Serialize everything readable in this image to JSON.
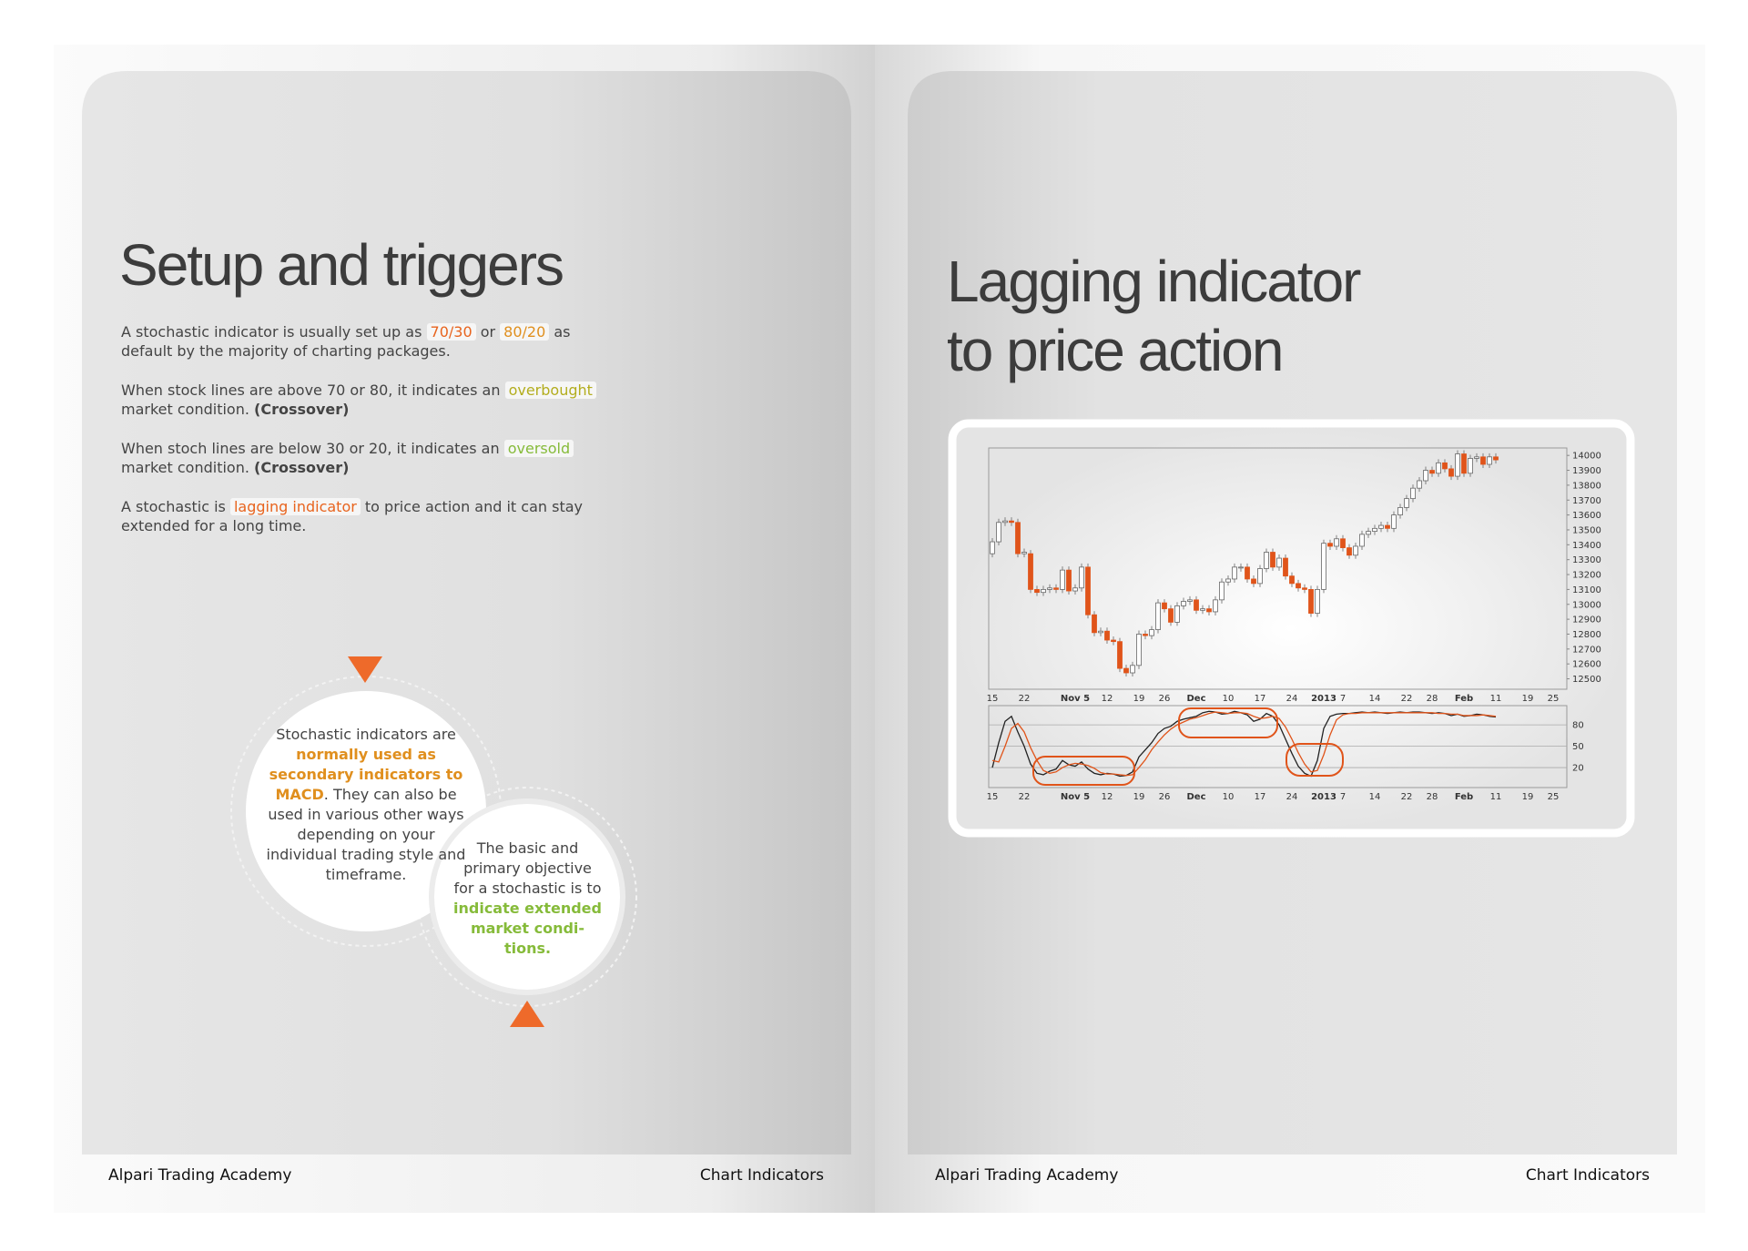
{
  "left_page": {
    "title": "Setup and triggers",
    "paragraphs": [
      [
        {
          "text": "A stochastic indicator is usually set up as ",
          "style": "plain"
        },
        {
          "text": "70/30",
          "style": "orange"
        },
        {
          "text": " or ",
          "style": "plain"
        },
        {
          "text": "80/20",
          "style": "amber"
        },
        {
          "text": " as default by the majority of charting packages.",
          "style": "plain"
        }
      ],
      [
        {
          "text": "When stock lines are above 70 or 80, it indicates an ",
          "style": "plain"
        },
        {
          "text": "overbought",
          "style": "olive"
        },
        {
          "text": " market condition. ",
          "style": "plain"
        },
        {
          "text": "(Crossover)",
          "style": "bold"
        }
      ],
      [
        {
          "text": "When stoch lines are below 30 or 20, it indicates an ",
          "style": "plain"
        },
        {
          "text": "oversold",
          "style": "green"
        },
        {
          "text": " market condition. ",
          "style": "plain"
        },
        {
          "text": "(Crossover)",
          "style": "bold"
        }
      ],
      [
        {
          "text": "A stochastic is ",
          "style": "plain"
        },
        {
          "text": "lagging indicator",
          "style": "orange"
        },
        {
          "text": " to price action and it can stay extended for a long time.",
          "style": "plain"
        }
      ]
    ],
    "callouts": [
      [
        {
          "text": "Stochastic indicators are ",
          "style": "plain"
        },
        {
          "text": "normally used as secondary indicators to MACD",
          "style": "amber-text"
        },
        {
          "text": ". They can also be used in various other ways depending on your individual trading style and timeframe.",
          "style": "plain"
        }
      ],
      [
        {
          "text": "The basic and primary objective for a stochastic is to ",
          "style": "plain"
        },
        {
          "text": "indicate extended market condi-tions.",
          "style": "green-text"
        }
      ]
    ],
    "footer": {
      "left": "Alpari Trading Academy",
      "right": "Chart Indicators"
    }
  },
  "right_page": {
    "title_lines": [
      "Lagging indicator",
      "to price action"
    ],
    "chart": {
      "type": "candlestick",
      "up_color": "#ffffff",
      "down_color": "#e0541a",
      "categories": [
        "15",
        null,
        null,
        null,
        null,
        "22",
        null,
        null,
        null,
        null,
        null,
        null,
        null,
        "Nov 5",
        null,
        null,
        null,
        null,
        "12",
        null,
        null,
        null,
        null,
        "19",
        null,
        null,
        null,
        "26",
        null,
        null,
        null,
        null,
        "Dec",
        null,
        null,
        null,
        null,
        "10",
        null,
        null,
        null,
        null,
        "17",
        null,
        null,
        null,
        null,
        "24",
        null,
        null,
        null,
        null,
        "2013",
        null,
        null,
        "7",
        null,
        null,
        null,
        null,
        "14",
        null,
        null,
        null,
        null,
        "22",
        null,
        null,
        null,
        "28",
        null,
        null,
        null,
        null,
        "Feb",
        null,
        null,
        null,
        null,
        "11",
        null,
        null,
        null,
        null,
        "19",
        null,
        null,
        null,
        "25"
      ],
      "open": [
        13340,
        13420,
        13550,
        13560,
        13550,
        13340,
        13340,
        13100,
        13080,
        13100,
        13110,
        13100,
        13230,
        13090,
        13110,
        13250,
        12930,
        12810,
        12820,
        12760,
        12750,
        12570,
        12540,
        12590,
        12800,
        12790,
        12830,
        13010,
        12970,
        12880,
        12990,
        13020,
        13030,
        12960,
        12970,
        12950,
        13030,
        13150,
        13170,
        13250,
        13250,
        13170,
        13140,
        13240,
        13350,
        13250,
        13310,
        13190,
        13140,
        13110,
        13100,
        12940,
        13100,
        13410,
        13390,
        13440,
        13380,
        13330,
        13390,
        13470,
        13490,
        13510,
        13530,
        13510,
        13600,
        13650,
        13710,
        13780,
        13830,
        13900,
        13880,
        13950,
        13910,
        13860,
        14010,
        13880,
        13980,
        13990,
        13940,
        13990,
        null,
        null,
        null,
        null,
        null,
        null,
        null,
        null,
        null
      ],
      "close": [
        13420,
        13550,
        13560,
        13550,
        13340,
        13350,
        13100,
        13080,
        13100,
        13110,
        13100,
        13230,
        13090,
        13110,
        13250,
        12930,
        12810,
        12820,
        12760,
        12750,
        12570,
        12540,
        12590,
        12800,
        12790,
        12830,
        13010,
        12970,
        12880,
        12990,
        13020,
        13030,
        12960,
        12970,
        12950,
        13030,
        13150,
        13170,
        13250,
        13250,
        13170,
        13140,
        13240,
        13350,
        13250,
        13310,
        13190,
        13140,
        13110,
        13100,
        12940,
        13100,
        13410,
        13390,
        13440,
        13380,
        13330,
        13390,
        13470,
        13490,
        13510,
        13530,
        13510,
        13600,
        13650,
        13710,
        13780,
        13830,
        13900,
        13880,
        13950,
        13910,
        13860,
        14010,
        13880,
        13980,
        13990,
        13940,
        13990,
        13970,
        null,
        null,
        null,
        null,
        null,
        null,
        null,
        null,
        null
      ],
      "ylim": [
        12430,
        14050
      ],
      "yticks": [
        12500,
        12600,
        12700,
        12800,
        12900,
        13000,
        13100,
        13200,
        13300,
        13400,
        13500,
        13600,
        13700,
        13800,
        13900,
        14000
      ],
      "stochastic": {
        "ylim": [
          -8,
          107
        ],
        "yticks": [
          80,
          50,
          20
        ],
        "k_color": "#222222",
        "d_color": "#e0541a",
        "k": [
          20,
          55,
          85,
          92,
          70,
          50,
          25,
          12,
          10,
          15,
          18,
          30,
          24,
          22,
          28,
          18,
          12,
          10,
          12,
          11,
          8,
          9,
          14,
          35,
          45,
          55,
          68,
          75,
          78,
          85,
          88,
          90,
          92,
          97,
          99,
          98,
          95,
          96,
          99,
          97,
          94,
          85,
          88,
          96,
          92,
          80,
          60,
          40,
          22,
          12,
          8,
          30,
          75,
          92,
          95,
          96,
          96,
          97,
          98,
          97,
          98,
          97,
          96,
          97,
          98,
          97,
          98,
          98,
          97,
          96,
          97,
          96,
          93,
          95,
          92,
          93,
          95,
          94,
          92,
          91,
          null,
          null,
          null,
          null,
          null,
          null,
          null,
          null,
          null
        ],
        "d": [
          30,
          28,
          50,
          75,
          82,
          70,
          48,
          30,
          16,
          12,
          14,
          20,
          24,
          26,
          25,
          23,
          19,
          13,
          11,
          11,
          10,
          9,
          10,
          20,
          31,
          45,
          56,
          66,
          74,
          80,
          84,
          88,
          90,
          93,
          96,
          98,
          97,
          96,
          97,
          97,
          96,
          92,
          89,
          90,
          92,
          89,
          77,
          60,
          41,
          25,
          14,
          16,
          38,
          66,
          87,
          94,
          96,
          96,
          97,
          97,
          97,
          97,
          97,
          97,
          97,
          97,
          97,
          97,
          97,
          97,
          96,
          96,
          95,
          95,
          93,
          93,
          93,
          94,
          93,
          92,
          null,
          null,
          null,
          null,
          null,
          null,
          null,
          null,
          null
        ]
      }
    },
    "footer": {
      "left": "Alpari Trading Academy",
      "right": "Chart Indicators"
    }
  }
}
